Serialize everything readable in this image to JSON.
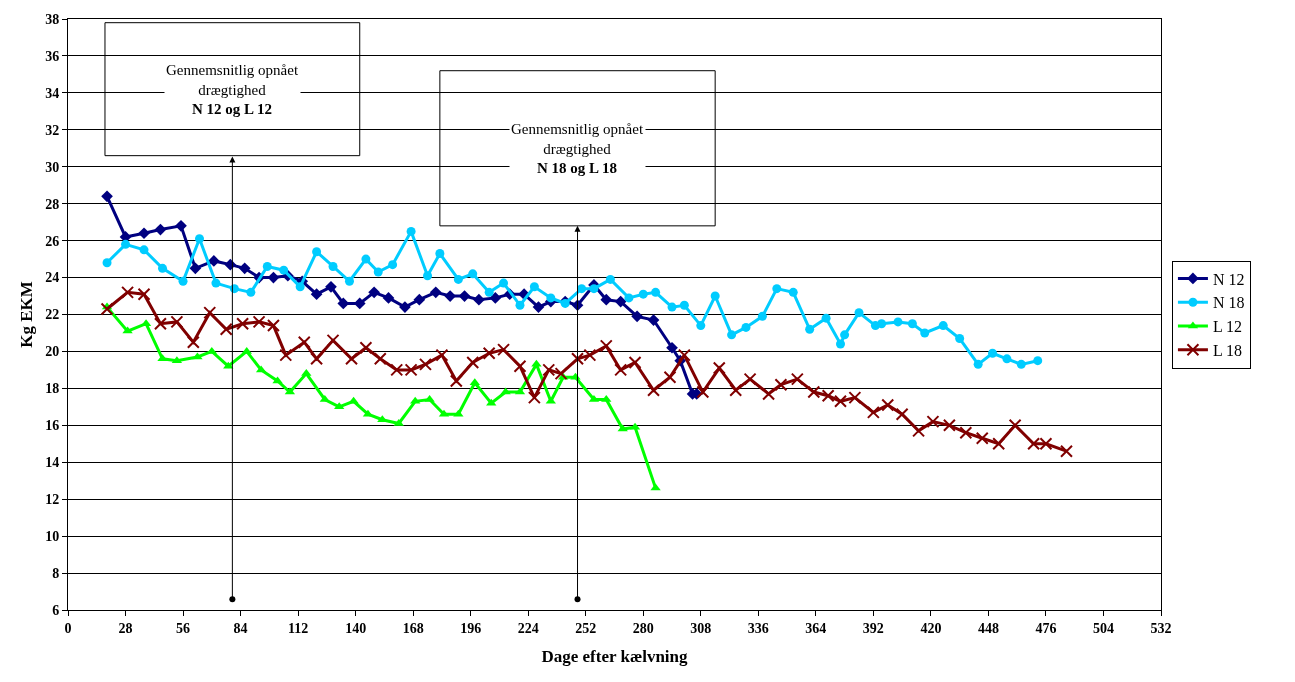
{
  "chart_data": {
    "type": "line",
    "xlabel": "Dage efter kælvning",
    "ylabel": "Kg EKM",
    "xlim": [
      0,
      532
    ],
    "xticks": [
      0,
      28,
      56,
      84,
      112,
      140,
      168,
      196,
      224,
      252,
      280,
      308,
      336,
      364,
      392,
      420,
      448,
      476,
      504,
      532
    ],
    "ylim": [
      6,
      38
    ],
    "yticks": [
      6,
      8,
      10,
      12,
      14,
      16,
      18,
      20,
      22,
      24,
      26,
      28,
      30,
      32,
      34,
      36,
      38
    ],
    "grid": "y",
    "legend": "right",
    "line_style": "solid",
    "series": [
      {
        "name": "N 12",
        "color": "#000080",
        "marker": "diamond",
        "x": [
          19,
          28,
          37,
          45,
          55,
          62,
          71,
          79,
          86,
          93,
          100,
          107,
          114,
          121,
          128,
          134,
          142,
          149,
          156,
          164,
          171,
          179,
          186,
          193,
          200,
          208,
          215,
          222,
          229,
          235,
          242,
          248,
          256,
          262,
          269,
          277,
          285,
          294,
          298,
          304,
          306
        ],
        "values": [
          28.4,
          26.2,
          26.4,
          26.6,
          26.8,
          24.5,
          24.9,
          24.7,
          24.5,
          24.0,
          24.0,
          24.1,
          23.8,
          23.1,
          23.5,
          22.6,
          22.6,
          23.2,
          22.9,
          22.4,
          22.8,
          23.2,
          23.0,
          23.0,
          22.8,
          22.9,
          23.1,
          23.1,
          22.4,
          22.7,
          22.7,
          22.5,
          23.6,
          22.8,
          22.7,
          21.9,
          21.7,
          20.2,
          19.5,
          17.7,
          17.7
        ]
      },
      {
        "name": "N 18",
        "color": "#00ccff",
        "marker": "circle",
        "x": [
          19,
          28,
          37,
          46,
          56,
          64,
          72,
          81,
          89,
          97,
          105,
          113,
          121,
          129,
          137,
          145,
          151,
          158,
          167,
          175,
          181,
          190,
          197,
          205,
          212,
          220,
          227,
          235,
          242,
          250,
          256,
          264,
          273,
          280,
          286,
          294,
          300,
          308,
          315,
          323,
          330,
          338,
          345,
          353,
          361,
          369,
          376,
          378,
          385,
          393,
          396,
          404,
          411,
          417,
          426,
          434,
          443,
          450,
          457,
          464,
          472
        ],
        "values": [
          24.8,
          25.8,
          25.5,
          24.5,
          23.8,
          26.1,
          23.7,
          23.4,
          23.2,
          24.6,
          24.4,
          23.5,
          25.4,
          24.6,
          23.8,
          25.0,
          24.3,
          24.7,
          26.5,
          24.1,
          25.3,
          23.9,
          24.2,
          23.2,
          23.7,
          22.5,
          23.5,
          22.9,
          22.6,
          23.4,
          23.4,
          23.9,
          22.9,
          23.1,
          23.2,
          22.4,
          22.5,
          21.4,
          23.0,
          20.9,
          21.3,
          21.9,
          23.4,
          23.2,
          21.2,
          21.8,
          20.4,
          20.9,
          22.1,
          21.4,
          21.5,
          21.6,
          21.5,
          21.0,
          21.4,
          20.7,
          19.3,
          19.9,
          19.6,
          19.3,
          19.5
        ]
      },
      {
        "name": "L 12",
        "color": "#00ff00",
        "marker": "triangle",
        "x": [
          19,
          29,
          38,
          46,
          53,
          63,
          70,
          78,
          87,
          94,
          102,
          108,
          116,
          125,
          132,
          139,
          146,
          153,
          161,
          169,
          176,
          183,
          190,
          198,
          206,
          213,
          220,
          228,
          235,
          241,
          247,
          256,
          262,
          270,
          276,
          286
        ],
        "values": [
          22.4,
          21.1,
          21.5,
          19.6,
          19.5,
          19.7,
          20.0,
          19.2,
          20.0,
          19.0,
          18.4,
          17.8,
          18.8,
          17.4,
          17.0,
          17.3,
          16.6,
          16.3,
          16.1,
          17.3,
          17.4,
          16.6,
          16.6,
          18.3,
          17.2,
          17.8,
          17.8,
          19.3,
          17.3,
          18.6,
          18.6,
          17.4,
          17.4,
          15.8,
          15.9,
          12.6
        ]
      },
      {
        "name": "L 18",
        "color": "#800000",
        "marker": "cross",
        "x": [
          19,
          29,
          37,
          45,
          53,
          61,
          69,
          77,
          85,
          93,
          100,
          106,
          115,
          121,
          129,
          138,
          145,
          152,
          160,
          167,
          174,
          182,
          189,
          197,
          205,
          212,
          220,
          227,
          234,
          240,
          248,
          254,
          262,
          269,
          276,
          285,
          293,
          300,
          309,
          317,
          325,
          332,
          341,
          347,
          355,
          363,
          370,
          376,
          383,
          392,
          399,
          406,
          414,
          421,
          429,
          437,
          445,
          453,
          461,
          470,
          476,
          486
        ],
        "values": [
          22.3,
          23.2,
          23.1,
          21.5,
          21.6,
          20.5,
          22.1,
          21.2,
          21.5,
          21.6,
          21.4,
          19.8,
          20.5,
          19.6,
          20.6,
          19.6,
          20.2,
          19.6,
          19.0,
          19.0,
          19.3,
          19.8,
          18.4,
          19.4,
          19.9,
          20.1,
          19.2,
          17.5,
          19.0,
          18.8,
          19.6,
          19.8,
          20.3,
          19.0,
          19.4,
          17.9,
          18.6,
          19.8,
          17.8,
          19.1,
          17.9,
          18.5,
          17.7,
          18.2,
          18.5,
          17.8,
          17.6,
          17.3,
          17.5,
          16.7,
          17.1,
          16.6,
          15.7,
          16.2,
          16.0,
          15.6,
          15.3,
          15.0,
          16.0,
          15.0,
          15.0,
          14.6
        ]
      }
    ],
    "annotations": [
      "Gennemsnitlig opnået\ndrægtighed\nN 12 og L 12",
      "Gennemsnitlig opnået\ndrægtighed\nN 18 og L 18"
    ]
  }
}
